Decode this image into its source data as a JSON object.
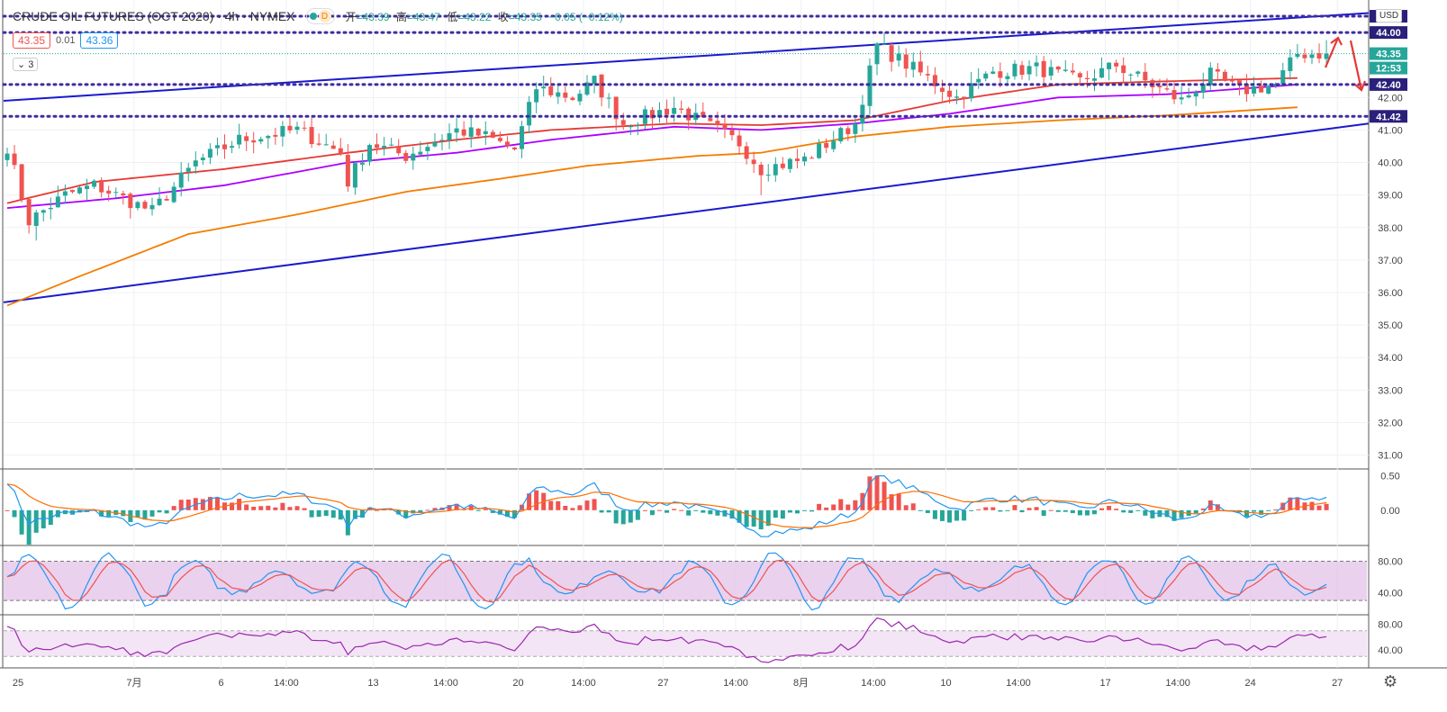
{
  "header": {
    "symbol": "CRUDE OIL FUTURES (OCT 2020) · 4h · NYMEX",
    "indicator_badge": "D",
    "ohlc": {
      "open_label": "开",
      "open": "=43.39",
      "high_label": "高",
      "high": "=43.47",
      "low_label": "低",
      "low": "=43.22",
      "close_label": "收",
      "close": "=43.35",
      "change": "−0.05 (−0.12%)"
    },
    "sell_price": "43.35",
    "spread": "0.01",
    "buy_price": "43.36",
    "collapse_count": "3"
  },
  "axis": {
    "currency": "USD"
  },
  "colors": {
    "up": "#26a69a",
    "down": "#ef5350",
    "ma_fast": "#e53935",
    "ma_mid": "#aa00ff",
    "ma_slow": "#f57c00",
    "channel": "#1a1acc",
    "level": "#3f2d9e",
    "macd_line": "#2196f3",
    "signal_line": "#ff6d00",
    "stoch_band": "#e1bee7",
    "rsi_line": "#9c27b0"
  },
  "chart_data": [
    {
      "type": "candlestick",
      "title": "CRUDE OIL FUTURES (OCT 2020) · 4h · NYMEX",
      "y_axis_ticks": [
        "31.00",
        "32.00",
        "33.00",
        "34.00",
        "35.00",
        "36.00",
        "37.00",
        "38.00",
        "39.00",
        "40.00",
        "41.00",
        "42.00"
      ],
      "ylim": [
        30.6,
        45.0
      ],
      "x_axis_ticks": [
        "25",
        "7月",
        "6",
        "14:00",
        "13",
        "14:00",
        "20",
        "14:00",
        "27",
        "14:00",
        "8月",
        "14:00",
        "10",
        "14:00",
        "17",
        "14:00",
        "24",
        "27"
      ],
      "price_levels": [
        {
          "label": "44.50",
          "value": 44.5
        },
        {
          "label": "44.00",
          "value": 44.0
        },
        {
          "label": "42.40",
          "value": 42.4
        },
        {
          "label": "41.42",
          "value": 41.42
        }
      ],
      "last_price": {
        "value": 43.35,
        "label": "43.35",
        "countdown": "12:53"
      },
      "channel_lines": [
        {
          "from_bar": 0,
          "from_value": 41.9,
          "to_bar": 181,
          "to_value": 44.6
        },
        {
          "from_bar": 0,
          "from_value": 35.7,
          "to_bar": 181,
          "to_value": 41.2
        }
      ],
      "close_series_anchors": [
        [
          0,
          40.5
        ],
        [
          3,
          38.2
        ],
        [
          8,
          39.0
        ],
        [
          12,
          39.3
        ],
        [
          20,
          38.5
        ],
        [
          26,
          40.0
        ],
        [
          32,
          40.7
        ],
        [
          40,
          41.0
        ],
        [
          46,
          40.3
        ],
        [
          47,
          39.4
        ],
        [
          50,
          40.6
        ],
        [
          55,
          40.2
        ],
        [
          62,
          41.0
        ],
        [
          66,
          40.8
        ],
        [
          70,
          40.4
        ],
        [
          73,
          42.3
        ],
        [
          78,
          42.0
        ],
        [
          81,
          42.5
        ],
        [
          85,
          41.2
        ],
        [
          92,
          41.7
        ],
        [
          97,
          41.1
        ],
        [
          101,
          40.6
        ],
        [
          104,
          39.8
        ],
        [
          110,
          40.1
        ],
        [
          117,
          41.2
        ],
        [
          120,
          43.6
        ],
        [
          127,
          42.6
        ],
        [
          131,
          42.0
        ],
        [
          136,
          42.8
        ],
        [
          142,
          42.9
        ],
        [
          148,
          42.5
        ],
        [
          153,
          43.0
        ],
        [
          157,
          42.5
        ],
        [
          162,
          41.9
        ],
        [
          166,
          42.7
        ],
        [
          170,
          42.2
        ],
        [
          175,
          42.4
        ],
        [
          178,
          43.35
        ]
      ],
      "sma_fast_anchors": [
        [
          0,
          38.75
        ],
        [
          12,
          39.4
        ],
        [
          30,
          39.8
        ],
        [
          47,
          40.3
        ],
        [
          62,
          40.7
        ],
        [
          75,
          41.0
        ],
        [
          92,
          41.2
        ],
        [
          104,
          41.15
        ],
        [
          117,
          41.3
        ],
        [
          130,
          41.9
        ],
        [
          145,
          42.4
        ],
        [
          160,
          42.5
        ],
        [
          178,
          42.6
        ]
      ],
      "sma_mid_anchors": [
        [
          0,
          38.6
        ],
        [
          15,
          38.9
        ],
        [
          30,
          39.3
        ],
        [
          47,
          40.0
        ],
        [
          62,
          40.3
        ],
        [
          75,
          40.7
        ],
        [
          92,
          41.1
        ],
        [
          104,
          41.0
        ],
        [
          117,
          41.2
        ],
        [
          130,
          41.5
        ],
        [
          145,
          42.0
        ],
        [
          160,
          42.1
        ],
        [
          178,
          42.4
        ]
      ],
      "sma_slow_anchors": [
        [
          0,
          35.6
        ],
        [
          10,
          36.5
        ],
        [
          25,
          37.8
        ],
        [
          40,
          38.4
        ],
        [
          55,
          39.1
        ],
        [
          68,
          39.5
        ],
        [
          80,
          39.9
        ],
        [
          95,
          40.2
        ],
        [
          104,
          40.3
        ],
        [
          117,
          40.8
        ],
        [
          130,
          41.1
        ],
        [
          145,
          41.3
        ],
        [
          160,
          41.45
        ],
        [
          178,
          41.7
        ]
      ]
    },
    {
      "type": "bar",
      "title": "",
      "y_axis_ticks": [
        "0.50",
        "0.00"
      ],
      "ylim": [
        -0.5,
        0.6
      ]
    },
    {
      "type": "line",
      "title": "",
      "y_axis_ticks": [
        "80.00",
        "40.00"
      ],
      "ylim": [
        13,
        100
      ],
      "band": [
        30,
        80
      ]
    },
    {
      "type": "line",
      "title": "",
      "y_axis_ticks": [
        "80.00",
        "40.00"
      ],
      "ylim": [
        12,
        95
      ],
      "band": [
        30,
        70
      ]
    }
  ]
}
